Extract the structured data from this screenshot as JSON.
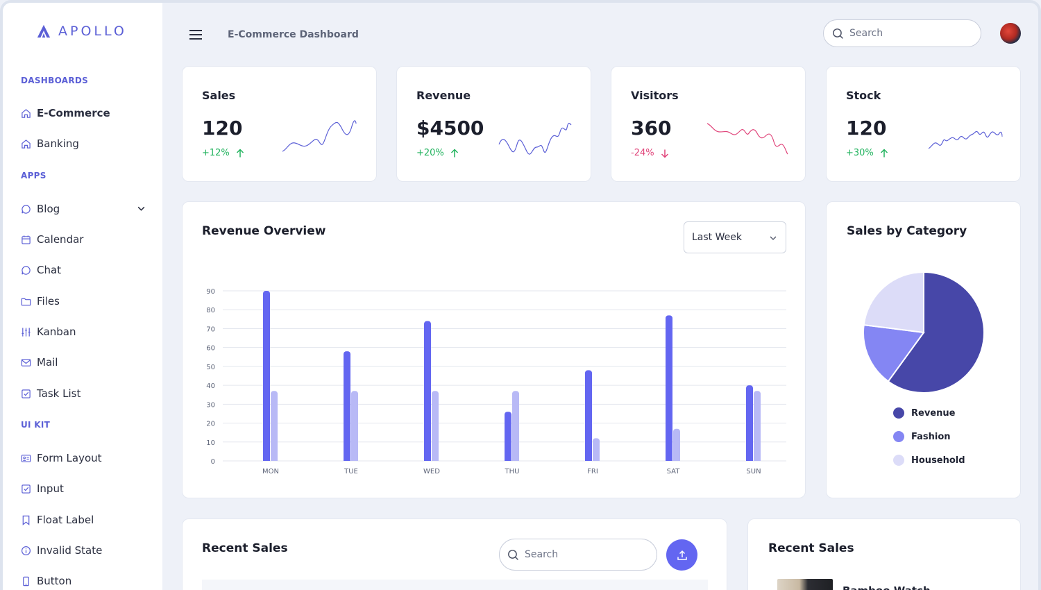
{
  "brand": {
    "name": "APOLLO",
    "color": "#5b5fd6"
  },
  "sidebar": {
    "sections": [
      {
        "label": "DASHBOARDS"
      },
      {
        "label": "APPS"
      },
      {
        "label": "UI KIT"
      }
    ],
    "items": [
      {
        "label": "E-Commerce",
        "icon": "home-icon",
        "active": true
      },
      {
        "label": "Banking",
        "icon": "home-icon"
      },
      {
        "label": "Blog",
        "icon": "chat-bubble-icon",
        "expandable": true
      },
      {
        "label": "Calendar",
        "icon": "calendar-icon"
      },
      {
        "label": "Chat",
        "icon": "chat-bubble-icon"
      },
      {
        "label": "Files",
        "icon": "folder-icon"
      },
      {
        "label": "Kanban",
        "icon": "sliders-icon"
      },
      {
        "label": "Mail",
        "icon": "mail-icon"
      },
      {
        "label": "Task List",
        "icon": "checkbox-icon"
      },
      {
        "label": "Form Layout",
        "icon": "id-card-icon"
      },
      {
        "label": "Input",
        "icon": "checkbox-icon"
      },
      {
        "label": "Float Label",
        "icon": "bookmark-icon"
      },
      {
        "label": "Invalid State",
        "icon": "info-circle-icon"
      },
      {
        "label": "Button",
        "icon": "mobile-icon"
      }
    ]
  },
  "header": {
    "title": "E-Commerce Dashboard",
    "search_placeholder": "Search"
  },
  "stats": [
    {
      "title": "Sales",
      "value": "120",
      "change": "+12%",
      "direction": "up",
      "color": "#22b35e",
      "spark_color": "#5b5fd6"
    },
    {
      "title": "Revenue",
      "value": "$4500",
      "change": "+20%",
      "direction": "up",
      "color": "#22b35e",
      "spark_color": "#5b5fd6"
    },
    {
      "title": "Visitors",
      "value": "360",
      "change": "-24%",
      "direction": "down",
      "color": "#e0447a",
      "spark_color": "#e0447a"
    },
    {
      "title": "Stock",
      "value": "120",
      "change": "+30%",
      "direction": "up",
      "color": "#22b35e",
      "spark_color": "#5b5fd6"
    }
  ],
  "revenue_overview": {
    "title": "Revenue Overview",
    "period": "Last Week"
  },
  "chart_data": [
    {
      "type": "bar",
      "categories": [
        "MON",
        "TUE",
        "WED",
        "THU",
        "FRI",
        "SAT",
        "SUN"
      ],
      "series": [
        {
          "values": [
            90,
            58,
            74,
            26,
            48,
            77,
            40
          ],
          "color": "#6366f1"
        },
        {
          "values": [
            37,
            37,
            37,
            37,
            12,
            17,
            37
          ],
          "color": "#b8b9f6"
        }
      ],
      "ylim": [
        0,
        90
      ],
      "yticks": [
        0,
        10,
        20,
        30,
        40,
        50,
        60,
        70,
        80,
        90
      ],
      "grid": true
    },
    {
      "type": "pie",
      "title": "Sales by Category",
      "labels": [
        "Revenue",
        "Fashion",
        "Household"
      ],
      "values": [
        60,
        17,
        23
      ],
      "colors": [
        "#4747a8",
        "#8486f3",
        "#dcdcf8"
      ],
      "legend": "bottom"
    }
  ],
  "recent_sales": {
    "title": "Recent Sales",
    "search_placeholder": "Search"
  },
  "recent_sales_side": {
    "title": "Recent Sales",
    "first_product": "Bamboo Watch"
  }
}
